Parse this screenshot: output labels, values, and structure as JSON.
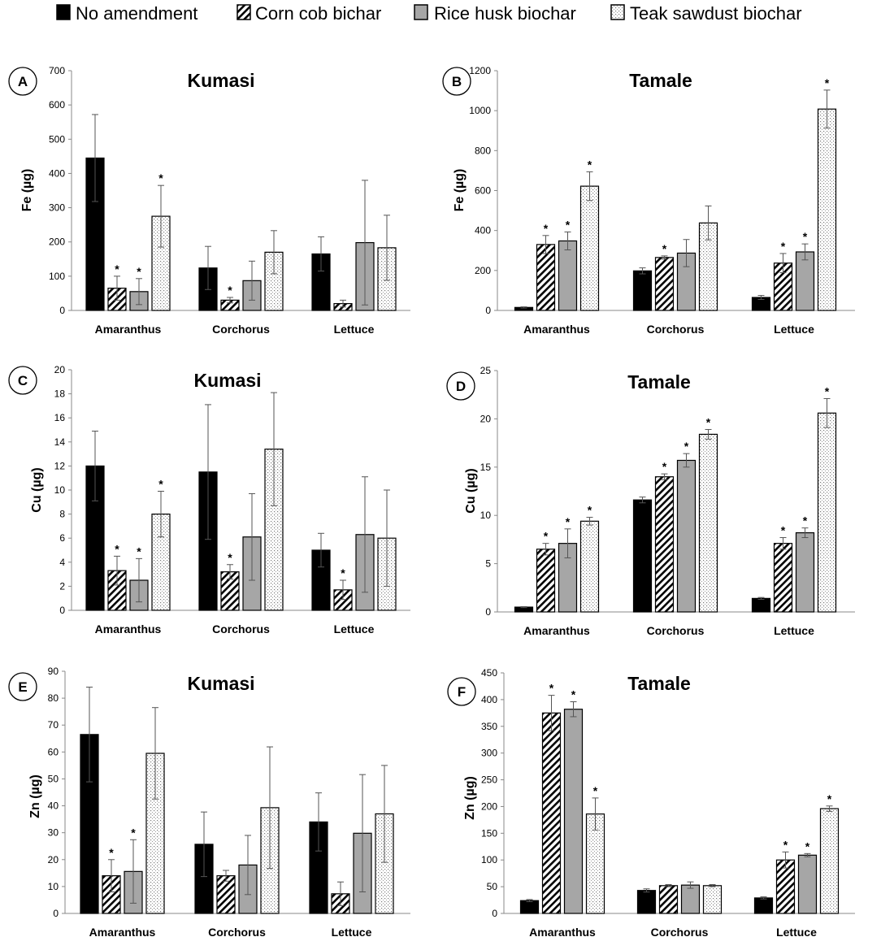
{
  "legend": {
    "items": [
      {
        "label": "No amendment",
        "pattern": "solid-black"
      },
      {
        "label": "Corn cob bichar",
        "pattern": "diagonal-hatch"
      },
      {
        "label": "Rice husk biochar",
        "pattern": "solid-gray"
      },
      {
        "label": "Teak sawdust biochar",
        "pattern": "dotted"
      }
    ]
  },
  "colors": {
    "no_amendment": "#000000",
    "rice_husk": "#a6a6a6",
    "hatch": "#000000",
    "dots": "#7a7a7a",
    "axis": "#888888"
  },
  "chart_data": [
    {
      "type": "bar",
      "panel": "A",
      "title": "Kumasi",
      "ylabel": "Fe  (µg)",
      "xlabel": "",
      "ylim": [
        0,
        700
      ],
      "yticks": [
        0,
        100,
        200,
        300,
        400,
        500,
        600,
        700
      ],
      "categories": [
        "Amaranthus",
        "Corchorus",
        "Lettuce"
      ],
      "series": [
        {
          "name": "No amendment",
          "values": [
            445,
            124,
            165
          ],
          "errors": [
            127,
            63,
            50
          ],
          "sig": [
            false,
            false,
            false
          ]
        },
        {
          "name": "Corn cob bichar",
          "values": [
            65,
            30,
            20
          ],
          "errors": [
            35,
            8,
            10
          ],
          "sig": [
            true,
            true,
            false
          ]
        },
        {
          "name": "Rice husk biochar",
          "values": [
            55,
            87,
            198
          ],
          "errors": [
            38,
            57,
            182
          ],
          "sig": [
            true,
            false,
            false
          ]
        },
        {
          "name": "Teak sawdust biochar",
          "values": [
            275,
            170,
            183
          ],
          "errors": [
            90,
            63,
            95
          ],
          "sig": [
            true,
            false,
            false
          ]
        }
      ]
    },
    {
      "type": "bar",
      "panel": "B",
      "title": "Tamale",
      "ylabel": "Fe  (µg)",
      "xlabel": "",
      "ylim": [
        0,
        1200
      ],
      "yticks": [
        0,
        200,
        400,
        600,
        800,
        1000,
        1200
      ],
      "categories": [
        "Amaranthus",
        "Corchorus",
        "Lettuce"
      ],
      "series": [
        {
          "name": "No amendment",
          "values": [
            15,
            198,
            65
          ],
          "errors": [
            3,
            15,
            10
          ],
          "sig": [
            false,
            false,
            false
          ]
        },
        {
          "name": "Corn cob bichar",
          "values": [
            330,
            265,
            237
          ],
          "errors": [
            45,
            8,
            48
          ],
          "sig": [
            true,
            true,
            true
          ]
        },
        {
          "name": "Rice husk biochar",
          "values": [
            348,
            287,
            293
          ],
          "errors": [
            45,
            68,
            40
          ],
          "sig": [
            true,
            false,
            true
          ]
        },
        {
          "name": "Teak sawdust biochar",
          "values": [
            622,
            438,
            1008
          ],
          "errors": [
            72,
            85,
            95
          ],
          "sig": [
            true,
            false,
            true
          ]
        }
      ]
    },
    {
      "type": "bar",
      "panel": "C",
      "title": "Kumasi",
      "ylabel": "Cu  (µg)",
      "xlabel": "",
      "ylim": [
        0,
        20
      ],
      "yticks": [
        0,
        2,
        4,
        6,
        8,
        10,
        12,
        14,
        16,
        18,
        20
      ],
      "categories": [
        "Amaranthus",
        "Corchorus",
        "Lettuce"
      ],
      "series": [
        {
          "name": "No amendment",
          "values": [
            12.0,
            11.5,
            5.0
          ],
          "errors": [
            2.9,
            5.6,
            1.4
          ],
          "sig": [
            false,
            false,
            false
          ]
        },
        {
          "name": "Corn cob bichar",
          "values": [
            3.3,
            3.2,
            1.7
          ],
          "errors": [
            1.2,
            0.6,
            0.8
          ],
          "sig": [
            true,
            true,
            true
          ]
        },
        {
          "name": "Rice husk biochar",
          "values": [
            2.5,
            6.1,
            6.3
          ],
          "errors": [
            1.8,
            3.6,
            4.8
          ],
          "sig": [
            true,
            false,
            false
          ]
        },
        {
          "name": "Teak sawdust biochar",
          "values": [
            8.0,
            13.4,
            6.0
          ],
          "errors": [
            1.9,
            4.7,
            4.0
          ],
          "sig": [
            true,
            false,
            false
          ]
        }
      ]
    },
    {
      "type": "bar",
      "panel": "D",
      "title": "Tamale",
      "ylabel": "Cu  (µg)",
      "xlabel": "",
      "ylim": [
        0,
        25
      ],
      "yticks": [
        0,
        5,
        10,
        15,
        20,
        25
      ],
      "categories": [
        "Amaranthus",
        "Corchorus",
        "Lettuce"
      ],
      "series": [
        {
          "name": "No amendment",
          "values": [
            0.5,
            11.6,
            1.4
          ],
          "errors": [
            0.05,
            0.3,
            0.1
          ],
          "sig": [
            false,
            false,
            false
          ]
        },
        {
          "name": "Corn cob bichar",
          "values": [
            6.5,
            14.0,
            7.1
          ],
          "errors": [
            0.6,
            0.3,
            0.6
          ],
          "sig": [
            true,
            true,
            true
          ]
        },
        {
          "name": "Rice husk biochar",
          "values": [
            7.1,
            15.7,
            8.2
          ],
          "errors": [
            1.5,
            0.7,
            0.5
          ],
          "sig": [
            true,
            true,
            true
          ]
        },
        {
          "name": "Teak sawdust biochar",
          "values": [
            9.4,
            18.4,
            20.6
          ],
          "errors": [
            0.4,
            0.5,
            1.5
          ],
          "sig": [
            true,
            true,
            true
          ]
        }
      ]
    },
    {
      "type": "bar",
      "panel": "E",
      "title": "Kumasi",
      "ylabel": "Zn  (µg)",
      "xlabel": "",
      "ylim": [
        0,
        90
      ],
      "yticks": [
        0,
        10,
        20,
        30,
        40,
        50,
        60,
        70,
        80,
        90
      ],
      "categories": [
        "Amaranthus",
        "Corchorus",
        "Lettuce"
      ],
      "series": [
        {
          "name": "No amendment",
          "values": [
            66.5,
            25.7,
            34.0
          ],
          "errors": [
            17.6,
            12.0,
            10.8
          ],
          "sig": [
            false,
            false,
            false
          ]
        },
        {
          "name": "Corn cob bichar",
          "values": [
            14.0,
            14.0,
            7.3
          ],
          "errors": [
            6.0,
            2.0,
            4.4
          ],
          "sig": [
            true,
            false,
            false
          ]
        },
        {
          "name": "Rice husk biochar",
          "values": [
            15.6,
            18.0,
            29.8
          ],
          "errors": [
            11.8,
            11.0,
            21.8
          ],
          "sig": [
            true,
            false,
            false
          ]
        },
        {
          "name": "Teak sawdust biochar",
          "values": [
            59.5,
            39.3,
            37.0
          ],
          "errors": [
            17.0,
            22.6,
            18.0
          ],
          "sig": [
            false,
            false,
            false
          ]
        }
      ]
    },
    {
      "type": "bar",
      "panel": "F",
      "title": "Tamale",
      "ylabel": "Zn  (µg)",
      "xlabel": "",
      "ylim": [
        0,
        450
      ],
      "yticks": [
        0,
        50,
        100,
        150,
        200,
        250,
        300,
        350,
        400,
        450
      ],
      "categories": [
        "Amaranthus",
        "Corchorus",
        "Lettuce"
      ],
      "series": [
        {
          "name": "No amendment",
          "values": [
            24,
            43,
            29
          ],
          "errors": [
            2,
            3,
            2
          ],
          "sig": [
            false,
            false,
            false
          ]
        },
        {
          "name": "Corn cob bichar",
          "values": [
            375,
            52,
            100
          ],
          "errors": [
            33,
            2,
            15
          ],
          "sig": [
            true,
            false,
            true
          ]
        },
        {
          "name": "Rice husk biochar",
          "values": [
            382,
            53,
            109
          ],
          "errors": [
            14,
            6,
            3
          ],
          "sig": [
            true,
            false,
            true
          ]
        },
        {
          "name": "Teak sawdust biochar",
          "values": [
            186,
            52,
            196
          ],
          "errors": [
            30,
            2,
            5
          ],
          "sig": [
            true,
            false,
            true
          ]
        }
      ]
    }
  ]
}
